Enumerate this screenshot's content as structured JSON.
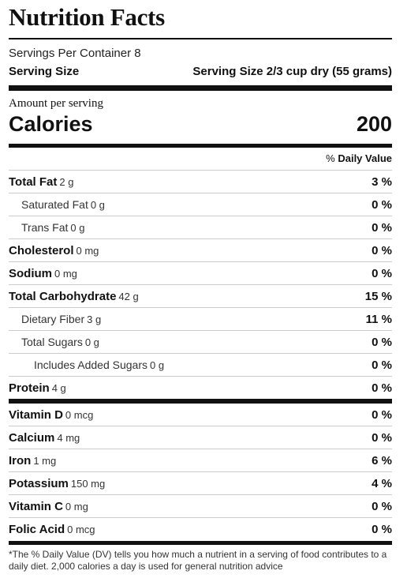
{
  "title": "Nutrition Facts",
  "servings_per_container": "Servings Per Container 8",
  "serving_size_label": "Serving Size",
  "serving_size_value": "Serving Size 2/3 cup dry (55 grams)",
  "amount_per_serving": "Amount per serving",
  "calories_label": "Calories",
  "calories_value": "200",
  "dv_header_prefix": "% ",
  "dv_header_bold": "Daily Value",
  "macros": [
    {
      "name": "Total Fat",
      "amount": "2 g",
      "pct": "3 %"
    },
    {
      "name": "Saturated Fat",
      "amount": "0 g",
      "pct": "0 %"
    },
    {
      "name": "Trans Fat",
      "amount": "0 g",
      "pct": "0 %"
    },
    {
      "name": "Cholesterol",
      "amount": "0 mg",
      "pct": "0 %"
    },
    {
      "name": "Sodium",
      "amount": "0 mg",
      "pct": "0 %"
    },
    {
      "name": "Total Carbohydrate",
      "amount": "42 g",
      "pct": "15 %"
    },
    {
      "name": "Dietary Fiber",
      "amount": "3 g",
      "pct": "11 %"
    },
    {
      "name": "Total Sugars",
      "amount": "0 g",
      "pct": "0 %"
    },
    {
      "name": "Includes Added Sugars",
      "amount": "0 g",
      "pct": "0 %"
    },
    {
      "name": "Protein",
      "amount": "4 g",
      "pct": "0 %"
    }
  ],
  "vitamins": [
    {
      "name": "Vitamin D",
      "amount": "0 mcg",
      "pct": "0 %"
    },
    {
      "name": "Calcium",
      "amount": "4 mg",
      "pct": "0 %"
    },
    {
      "name": "Iron",
      "amount": "1 mg",
      "pct": "6 %"
    },
    {
      "name": "Potassium",
      "amount": "150 mg",
      "pct": "4 %"
    },
    {
      "name": "Vitamin C",
      "amount": "0 mg",
      "pct": "0 %"
    },
    {
      "name": "Folic Acid",
      "amount": "0 mcg",
      "pct": "0 %"
    }
  ],
  "footnote": "*The % Daily Value (DV) tells you how much a nutrient in a serving of food contributes to a daily diet. 2,000 calories a day is used for general nutrition advice"
}
